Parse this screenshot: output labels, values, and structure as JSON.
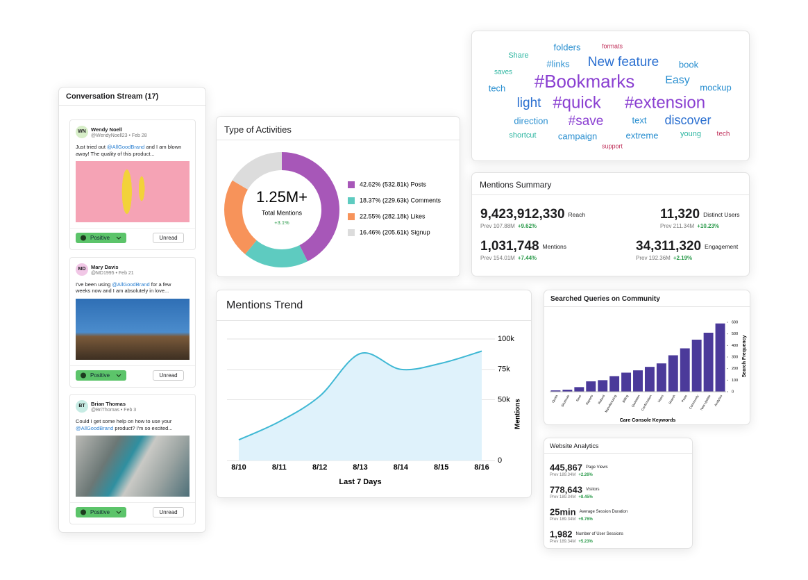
{
  "conversation_stream": {
    "title": "Conversation Stream (17)",
    "posts": [
      {
        "initials": "WN",
        "name": "Wendy Noell",
        "meta": "@WendyNoell23 • Feb 28",
        "text_before": "Just tried out ",
        "mention": "@AllGoodBrand",
        "text_after": " and I am blown away! The quality of this product...",
        "sentiment": "Positive",
        "status": "Unread"
      },
      {
        "initials": "MD",
        "name": "Mary Davis",
        "meta": "@MD1995 • Feb 21",
        "text_before": "I've been using ",
        "mention": "@AllGoodBrand",
        "text_after": " for a few weeks now and I am absolutely in love...",
        "sentiment": "Positive",
        "status": "Unread"
      },
      {
        "initials": "BT",
        "name": "Brian Thomas",
        "meta": "@BriThomas • Feb 3",
        "text_before": "Could I get some help on how to use your ",
        "mention": "@AllGoodBrand",
        "text_after": " product? I'm so excited...",
        "sentiment": "Positive",
        "status": "Unread"
      }
    ]
  },
  "activities": {
    "type": "donut",
    "title": "Type of Activities",
    "total": "1.25M+",
    "total_label": "Total Mentions",
    "change": "+3.1%",
    "segments": [
      {
        "label": "42.62% (532.81k) Posts",
        "value": 42.62,
        "color": "#a757b8"
      },
      {
        "label": "18.37% (229.63k) Comments",
        "value": 18.37,
        "color": "#5ecbc0"
      },
      {
        "label": "22.55% (282.18k) Likes",
        "value": 22.55,
        "color": "#f7935a"
      },
      {
        "label": "16.46% (205.61k) Signup",
        "value": 16.46,
        "color": "#dcdcdc"
      }
    ]
  },
  "word_cloud": {
    "words": [
      {
        "text": "Share",
        "color": "#2bb5a0"
      },
      {
        "text": "folders",
        "color": "#2a8fd0"
      },
      {
        "text": "formats",
        "color": "#c0305a"
      },
      {
        "text": "#links",
        "color": "#2a8fd0"
      },
      {
        "text": "New feature",
        "color": "#2a6fd0"
      },
      {
        "text": "book",
        "color": "#2a8fd0"
      },
      {
        "text": "saves",
        "color": "#2bb5a0"
      },
      {
        "text": "#Bookmarks",
        "color": "#8a3fd1"
      },
      {
        "text": "Easy",
        "color": "#2a8fd0"
      },
      {
        "text": "tech",
        "color": "#2a8fd0"
      },
      {
        "text": "mockup",
        "color": "#2a8fd0"
      },
      {
        "text": "light",
        "color": "#2a6fd0"
      },
      {
        "text": "#quick",
        "color": "#8a3fd1"
      },
      {
        "text": "#extension",
        "color": "#8a3fd1"
      },
      {
        "text": "direction",
        "color": "#2a8fd0"
      },
      {
        "text": "#save",
        "color": "#8a3fd1"
      },
      {
        "text": "text",
        "color": "#2a8fd0"
      },
      {
        "text": "discover",
        "color": "#2a6fd0"
      },
      {
        "text": "shortcut",
        "color": "#2bb5a0"
      },
      {
        "text": "campaign",
        "color": "#2a8fd0"
      },
      {
        "text": "extreme",
        "color": "#2a8fd0"
      },
      {
        "text": "young",
        "color": "#2bb5a0"
      },
      {
        "text": "tech",
        "color": "#c0305a"
      },
      {
        "text": "support",
        "color": "#c0305a"
      }
    ]
  },
  "mentions_summary": {
    "title": "Mentions Summary",
    "items": [
      {
        "value": "9,423,912,330",
        "label": "Reach",
        "prev": "Prev 107.88M",
        "change": "+9.62%"
      },
      {
        "value": "11,320",
        "label": "Distinct Users",
        "prev": "Prev 211.34M",
        "change": "+10.23%"
      },
      {
        "value": "1,031,748",
        "label": "Mentions",
        "prev": "Prev 154.01M",
        "change": "+7.44%"
      },
      {
        "value": "34,311,320",
        "label": "Engagement",
        "prev": "Prev 192.36M",
        "change": "+2.19%"
      }
    ]
  },
  "mentions_trend": {
    "type": "line",
    "title": "Mentions Trend",
    "categories": [
      "8/10",
      "8/11",
      "8/12",
      "8/13",
      "8/14",
      "8/15",
      "8/16"
    ],
    "values": [
      17000,
      32000,
      53000,
      88000,
      75000,
      80000,
      90000
    ],
    "color": "#3fb8d4",
    "fill": "#dff2fb",
    "x_label": "Last 7 Days",
    "y_label": "Mentions",
    "ylim": [
      0,
      100000
    ],
    "yticks": [
      0,
      {
        "value": 50000,
        "label": "50k"
      },
      {
        "value": 75000,
        "label": "75k"
      },
      {
        "value": 100000,
        "label": "100k"
      }
    ],
    "grid": true
  },
  "searched_queries": {
    "type": "bar",
    "title": "Searched Queries on Community",
    "categories": [
      "Quota",
      "Shortcuts",
      "Save",
      "Reports",
      "Refund",
      "Manufacturing",
      "Billing",
      "Quotation",
      "Confirmation",
      "Users",
      "Search",
      "Posts",
      "Community",
      "New Update",
      "Analytics"
    ],
    "values": [
      12,
      18,
      40,
      90,
      100,
      135,
      165,
      185,
      215,
      245,
      315,
      375,
      450,
      510,
      590
    ],
    "color": "#4b3a9a",
    "x_label": "Care Console Keywords",
    "y_label": "Search Frequency",
    "ylim": [
      0,
      600
    ],
    "yticks": [
      0,
      100,
      200,
      300,
      400,
      500,
      600
    ]
  },
  "website_analytics": {
    "title": "Website Analytics",
    "items": [
      {
        "value": "445,867",
        "label": "Page Views",
        "prev": "Prev 189.34M",
        "change": "+2.26%"
      },
      {
        "value": "778,643",
        "label": "Visitors",
        "prev": "Prev 189.34M",
        "change": "+8.45%"
      },
      {
        "value": "25min",
        "label": "Average Session Duration",
        "prev": "Prev 189.34M",
        "change": "+9.76%"
      },
      {
        "value": "1,982",
        "label": "Number of User Sessions",
        "prev": "Prev 189.34M",
        "change": "+5.23%"
      }
    ]
  }
}
